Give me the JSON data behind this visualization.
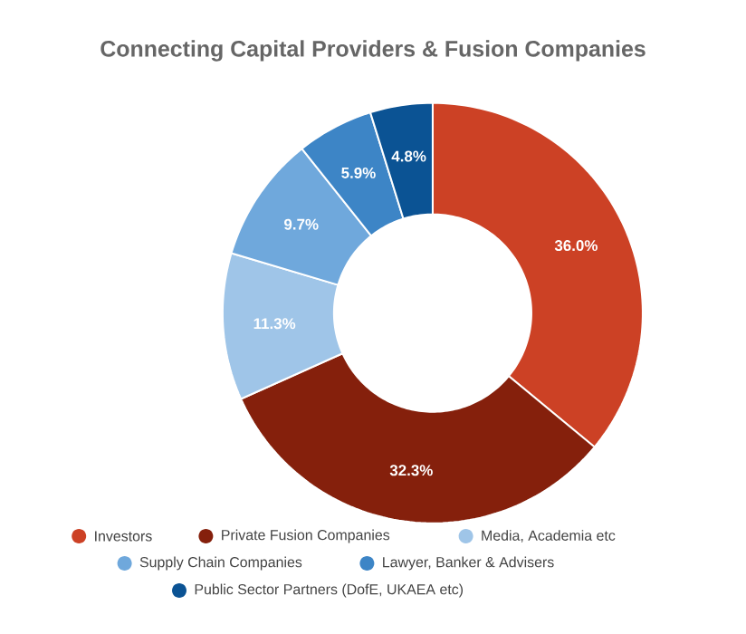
{
  "chart_data": {
    "type": "donut",
    "title": "Connecting Capital Providers & Fusion Companies",
    "categories": [
      "Investors",
      "Private Fusion Companies",
      "Media, Academia etc",
      "Supply Chain Companies",
      "Lawyer, Banker & Advisers",
      "Public Sector Partners (DofE, UKAEA etc)"
    ],
    "values": [
      36.0,
      32.3,
      11.3,
      9.7,
      5.9,
      4.8
    ],
    "value_labels": [
      "36.0%",
      "32.3%",
      "11.3%",
      "9.7%",
      "5.9%",
      "4.8%"
    ],
    "colors": [
      "#cc4125",
      "#85200c",
      "#9fc5e8",
      "#6fa8dc",
      "#3d85c6",
      "#0b5394"
    ],
    "legend": "bottom"
  }
}
